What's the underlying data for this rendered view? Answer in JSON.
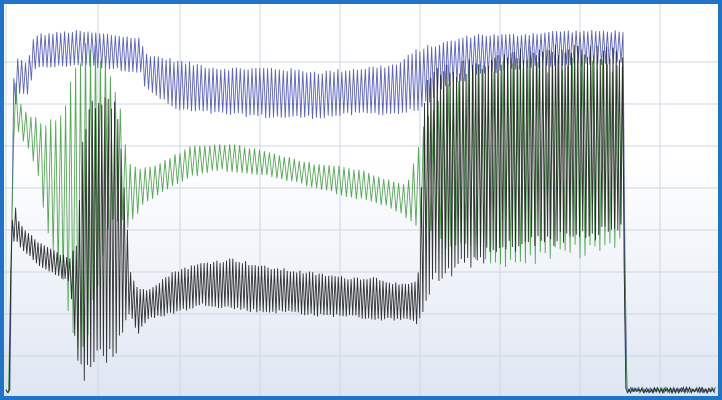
{
  "chart_data": {
    "type": "line",
    "title": "",
    "xlabel": "",
    "ylabel": "",
    "x_tick_labels": [],
    "y_tick_labels": [],
    "legend": "none",
    "grid": true,
    "style": {
      "frame_color": "#1f74c9",
      "background_top": "#ffffff",
      "background_bottom": "#dfe6f2",
      "grid_color": "#cdd6e3"
    },
    "xlim": [
      0,
      100
    ],
    "ylim": [
      0,
      100
    ],
    "series": [
      {
        "color": "#3f48b5",
        "oscillation": {
          "period": 0.55,
          "amplitude_low": [
            [
              0,
              1.5
            ],
            [
              3,
              6
            ],
            [
              20,
              14
            ],
            [
              60,
              14
            ],
            [
              64,
              9
            ],
            [
              70,
              6
            ],
            [
              87,
              6
            ],
            [
              87.3,
              0.5
            ],
            [
              100,
              0.5
            ]
          ]
        },
        "upper": [
          [
            0,
            1
          ],
          [
            0.7,
            1
          ],
          [
            0.9,
            82
          ],
          [
            1.6,
            90
          ],
          [
            3,
            88
          ],
          [
            4,
            96
          ],
          [
            10,
            97
          ],
          [
            15,
            96
          ],
          [
            19,
            95
          ],
          [
            19.5,
            91
          ],
          [
            24,
            89
          ],
          [
            30,
            87
          ],
          [
            38,
            87
          ],
          [
            44,
            86
          ],
          [
            50,
            87
          ],
          [
            55,
            88
          ],
          [
            58,
            92
          ],
          [
            62,
            94
          ],
          [
            66,
            96
          ],
          [
            72,
            96
          ],
          [
            78,
            97
          ],
          [
            84,
            97
          ],
          [
            87,
            97
          ],
          [
            87.3,
            1.5
          ],
          [
            100,
            1.5
          ]
        ],
        "lower": [
          [
            0,
            0.5
          ],
          [
            0.7,
            0.5
          ],
          [
            0.9,
            72
          ],
          [
            1.6,
            80
          ],
          [
            3,
            80
          ],
          [
            4,
            87
          ],
          [
            10,
            88
          ],
          [
            15,
            87
          ],
          [
            19,
            86
          ],
          [
            19.5,
            82
          ],
          [
            24,
            76
          ],
          [
            30,
            75
          ],
          [
            38,
            74
          ],
          [
            44,
            74
          ],
          [
            50,
            75
          ],
          [
            55,
            75
          ],
          [
            58,
            76
          ],
          [
            62,
            82
          ],
          [
            66,
            85
          ],
          [
            72,
            87
          ],
          [
            78,
            88
          ],
          [
            84,
            88
          ],
          [
            87,
            89
          ],
          [
            87.3,
            0.5
          ],
          [
            100,
            0.5
          ]
        ]
      },
      {
        "color": "#3a9a3a",
        "oscillation": {
          "period": 0.7,
          "amplitude_low": [
            [
              0,
              1
            ],
            [
              3,
              6
            ],
            [
              4.5,
              9
            ],
            [
              6,
              45
            ],
            [
              11,
              70
            ],
            [
              12,
              60
            ],
            [
              17,
              3
            ],
            [
              18,
              4
            ],
            [
              55,
              5
            ],
            [
              58,
              30
            ],
            [
              64,
              40
            ],
            [
              87,
              4
            ],
            [
              87.3,
              0.5
            ],
            [
              100,
              0.5
            ]
          ]
        },
        "upper": [
          [
            0,
            1
          ],
          [
            0.6,
            1
          ],
          [
            0.8,
            70
          ],
          [
            1.3,
            85
          ],
          [
            1.8,
            78
          ],
          [
            3,
            75
          ],
          [
            6,
            72
          ],
          [
            8,
            76
          ],
          [
            9,
            84
          ],
          [
            10.5,
            91
          ],
          [
            12,
            92
          ],
          [
            13.5,
            91
          ],
          [
            15,
            84
          ],
          [
            16.5,
            74
          ],
          [
            17,
            62
          ],
          [
            19,
            60
          ],
          [
            22,
            62
          ],
          [
            26,
            66
          ],
          [
            30,
            67
          ],
          [
            34,
            66
          ],
          [
            38,
            64
          ],
          [
            42,
            62
          ],
          [
            46,
            61
          ],
          [
            50,
            60
          ],
          [
            54,
            57
          ],
          [
            56,
            56
          ],
          [
            57,
            58
          ],
          [
            58,
            66
          ],
          [
            59,
            72
          ],
          [
            61,
            80
          ],
          [
            63,
            84
          ],
          [
            65,
            86
          ],
          [
            70,
            88
          ],
          [
            80,
            88
          ],
          [
            87,
            87
          ],
          [
            87.3,
            1.5
          ],
          [
            100,
            1.5
          ]
        ],
        "lower": [
          [
            0,
            0.5
          ],
          [
            0.6,
            0.5
          ],
          [
            0.8,
            60
          ],
          [
            1.3,
            72
          ],
          [
            1.8,
            70
          ],
          [
            3,
            66
          ],
          [
            4.5,
            59
          ],
          [
            6,
            42
          ],
          [
            8,
            30
          ],
          [
            10,
            12
          ],
          [
            12,
            20
          ],
          [
            14,
            42
          ],
          [
            16,
            48
          ],
          [
            17,
            44
          ],
          [
            19,
            50
          ],
          [
            22,
            54
          ],
          [
            26,
            58
          ],
          [
            30,
            60
          ],
          [
            34,
            59
          ],
          [
            38,
            58
          ],
          [
            42,
            56
          ],
          [
            46,
            54
          ],
          [
            50,
            52
          ],
          [
            54,
            50
          ],
          [
            56,
            48
          ],
          [
            58,
            45
          ],
          [
            62,
            40
          ],
          [
            66,
            38
          ],
          [
            70,
            35
          ],
          [
            80,
            38
          ],
          [
            87,
            40
          ],
          [
            87.3,
            0.5
          ],
          [
            100,
            0.5
          ]
        ]
      },
      {
        "color": "#1e1e1e",
        "oscillation": {
          "period": 0.45,
          "amplitude_low": [
            [
              0,
              1
            ],
            [
              3,
              3
            ],
            [
              10.5,
              4
            ],
            [
              11.5,
              30
            ],
            [
              12.5,
              60
            ],
            [
              15,
              65
            ],
            [
              16,
              55
            ],
            [
              17.5,
              6
            ],
            [
              18,
              5
            ],
            [
              55,
              5
            ],
            [
              57,
              5
            ],
            [
              58,
              40
            ],
            [
              60,
              50
            ],
            [
              87,
              60
            ],
            [
              87.3,
              0.5
            ],
            [
              100,
              0.5
            ]
          ]
        },
        "upper": [
          [
            0,
            1
          ],
          [
            0.5,
            1
          ],
          [
            0.7,
            45
          ],
          [
            1.3,
            50
          ],
          [
            1.8,
            46
          ],
          [
            2.5,
            44
          ],
          [
            5,
            40
          ],
          [
            7,
            38
          ],
          [
            9,
            36
          ],
          [
            10,
            40
          ],
          [
            11,
            72
          ],
          [
            12,
            78
          ],
          [
            14,
            80
          ],
          [
            15.5,
            78
          ],
          [
            16.5,
            60
          ],
          [
            17.5,
            33
          ],
          [
            18.5,
            28
          ],
          [
            20,
            28
          ],
          [
            24,
            33
          ],
          [
            28,
            35
          ],
          [
            32,
            36
          ],
          [
            36,
            34
          ],
          [
            40,
            33
          ],
          [
            44,
            32
          ],
          [
            48,
            31
          ],
          [
            52,
            31
          ],
          [
            54,
            30
          ],
          [
            56,
            29
          ],
          [
            58,
            30
          ],
          [
            59,
            80
          ],
          [
            60,
            85
          ],
          [
            66,
            88
          ],
          [
            72,
            91
          ],
          [
            80,
            92
          ],
          [
            86,
            91
          ],
          [
            87,
            90
          ],
          [
            87.3,
            1.5
          ],
          [
            100,
            1.5
          ]
        ],
        "lower": [
          [
            0,
            0.5
          ],
          [
            0.5,
            0.5
          ],
          [
            0.7,
            38
          ],
          [
            1.3,
            42
          ],
          [
            1.8,
            40
          ],
          [
            2.5,
            38
          ],
          [
            5,
            34
          ],
          [
            7,
            32
          ],
          [
            9,
            30
          ],
          [
            10,
            8
          ],
          [
            11,
            6
          ],
          [
            12,
            10
          ],
          [
            14,
            10
          ],
          [
            15.5,
            12
          ],
          [
            16.5,
            18
          ],
          [
            17.5,
            22
          ],
          [
            18.5,
            16
          ],
          [
            20,
            20
          ],
          [
            24,
            22
          ],
          [
            28,
            24
          ],
          [
            32,
            23
          ],
          [
            36,
            22
          ],
          [
            40,
            22
          ],
          [
            44,
            21
          ],
          [
            48,
            21
          ],
          [
            52,
            20
          ],
          [
            54,
            20
          ],
          [
            56,
            20
          ],
          [
            58,
            19
          ],
          [
            59,
            25
          ],
          [
            60,
            30
          ],
          [
            66,
            36
          ],
          [
            72,
            40
          ],
          [
            80,
            42
          ],
          [
            86,
            44
          ],
          [
            87,
            44
          ],
          [
            87.3,
            0.5
          ],
          [
            100,
            0.5
          ]
        ]
      }
    ]
  }
}
